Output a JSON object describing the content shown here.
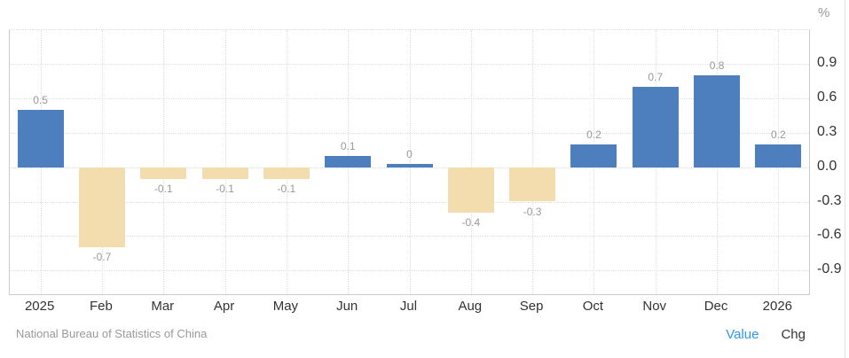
{
  "header": {
    "unit": "%"
  },
  "footer": {
    "source": "National Bureau of Statistics of China",
    "value_label": "Value",
    "chg_label": "Chg"
  },
  "colors": {
    "positive_bar": "#4d7ebd",
    "negative_bar": "#f3ddae",
    "grid": "#dddddd",
    "plot_border": "#cccccc",
    "axis_label": "#333333",
    "data_label": "#999999",
    "source_text": "#999999",
    "value_link": "#2f96f3"
  },
  "chart_data": {
    "type": "bar",
    "title": "",
    "xlabel": "",
    "ylabel": "%",
    "categories": [
      "2025",
      "Feb",
      "Mar",
      "Apr",
      "May",
      "Jun",
      "Jul",
      "Aug",
      "Sep",
      "Oct",
      "Nov",
      "Dec",
      "2026"
    ],
    "values": [
      0.5,
      -0.7,
      -0.1,
      -0.1,
      -0.1,
      0.1,
      0,
      -0.4,
      -0.3,
      0.2,
      0.7,
      0.8,
      0.2
    ],
    "data_labels": [
      "0.5",
      "-0.7",
      "-0.1",
      "-0.1",
      "-0.1",
      "0.1",
      "0",
      "-0.4",
      "-0.3",
      "0.2",
      "0.7",
      "0.8",
      "0.2"
    ],
    "y_ticks": [
      0.9,
      0.6,
      0.3,
      0,
      -0.3,
      -0.6,
      -0.9
    ],
    "y_tick_labels": [
      "0.9",
      "0.6",
      "0.3",
      "0.0",
      "-0.3",
      "-0.6",
      "-0.9"
    ],
    "gridline_values": [
      0.9,
      0.6,
      0.3,
      0,
      -0.3,
      -0.6,
      -0.9
    ],
    "ylim": [
      -1.12,
      1.19
    ],
    "grid": true,
    "legend": "none",
    "bar_color_positive": "#4d7ebd",
    "bar_color_negative": "#f3ddae"
  }
}
